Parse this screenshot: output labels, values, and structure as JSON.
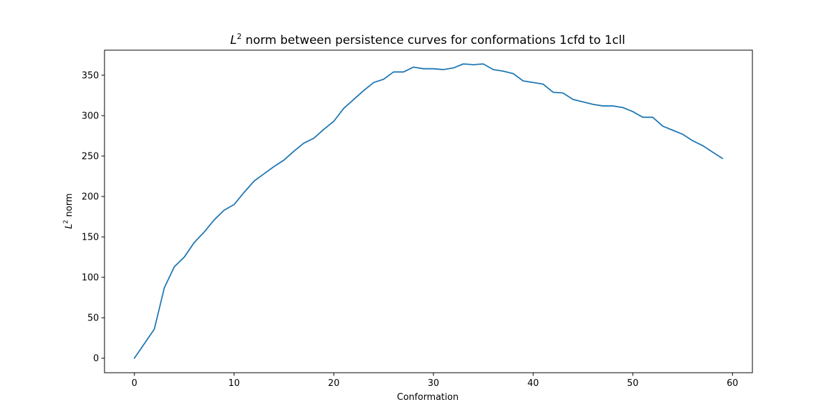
{
  "chart_data": {
    "type": "line",
    "title_math": "L",
    "title_sup": "2",
    "title_rest": " norm between persistence curves for conformations 1cfd to 1cll",
    "xlabel": "Conformation",
    "ylabel_math": "L",
    "ylabel_sup": "2",
    "ylabel_rest": " norm",
    "xlim": [
      -3,
      62
    ],
    "ylim": [
      -18,
      381
    ],
    "xticks": [
      0,
      10,
      20,
      30,
      40,
      50,
      60
    ],
    "yticks": [
      0,
      50,
      100,
      150,
      200,
      250,
      300,
      350
    ],
    "grid": false,
    "line_color": "#1f77b4",
    "series": [
      {
        "x": [
          0,
          1,
          2,
          3,
          4,
          5,
          6,
          7,
          8,
          9,
          10,
          11,
          12,
          13,
          14,
          15,
          16,
          17,
          18,
          19,
          20,
          21,
          22,
          23,
          24,
          25,
          26,
          27,
          28,
          29,
          30,
          31,
          32,
          33,
          34,
          35,
          36,
          37,
          38,
          39,
          40,
          41,
          42,
          43,
          44,
          45,
          46,
          47,
          48,
          49,
          50,
          51,
          52,
          53,
          54,
          55,
          56,
          57,
          58,
          59
        ],
        "values": [
          0,
          18,
          36,
          87,
          113,
          125,
          143,
          156,
          171,
          183,
          190,
          205,
          219,
          228,
          237,
          245,
          256,
          266,
          272,
          283,
          293,
          309,
          320,
          331,
          341,
          345,
          354,
          354,
          360,
          358,
          358,
          357,
          359,
          364,
          363,
          364,
          357,
          355,
          352,
          343,
          341,
          339,
          329,
          328,
          320,
          317,
          314,
          312,
          312,
          310,
          305,
          298,
          298,
          287,
          282,
          277,
          269,
          263,
          255,
          247
        ]
      }
    ]
  }
}
